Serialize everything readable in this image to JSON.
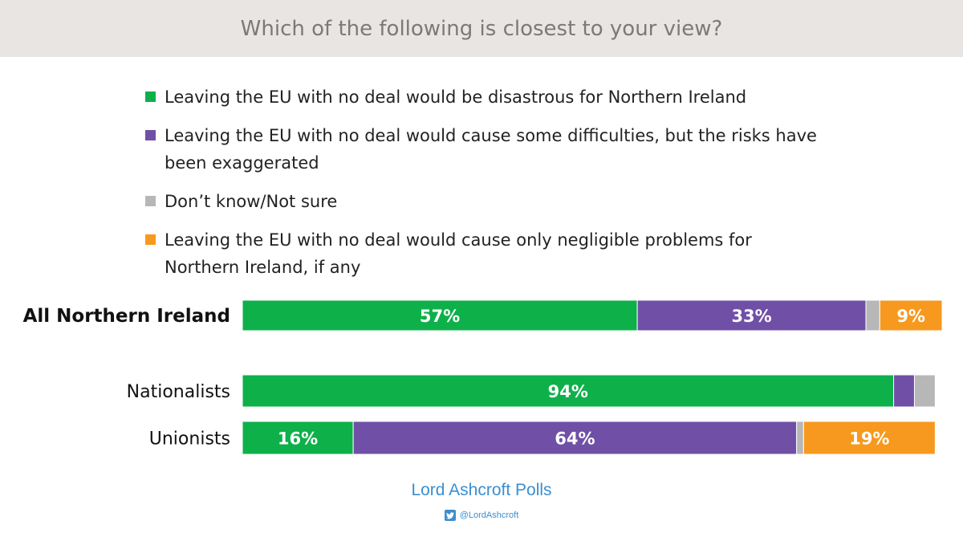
{
  "header": {
    "title": "Which of the following is closest to your view?"
  },
  "legend": [
    {
      "label": "Leaving the EU with no deal would be disastrous for Northern Ireland",
      "color": "#0eb04a"
    },
    {
      "label": "Leaving the EU with no deal would cause some difficulties, but the risks have been exaggerated",
      "color": "#7050a6"
    },
    {
      "label": "Don’t know/Not  sure",
      "color": "#b7b7b7"
    },
    {
      "label": "Leaving the EU with no deal would cause only negligible problems for Northern Ireland, if any",
      "color": "#f7991e"
    }
  ],
  "chart_data": {
    "type": "bar",
    "orientation": "horizontal",
    "stacked": true,
    "categories": [
      "All Northern Ireland",
      "Nationalists",
      "Unionists"
    ],
    "series": [
      {
        "name": "Leaving the EU with no deal would be disastrous for Northern Ireland",
        "values": [
          57,
          94,
          16
        ],
        "labels": [
          "57%",
          "94%",
          "16%"
        ],
        "color": "#0eb04a"
      },
      {
        "name": "Leaving the EU with no deal would cause some difficulties, but the risks have been exaggerated",
        "values": [
          33,
          3,
          64
        ],
        "labels": [
          "33%",
          "",
          "64%"
        ],
        "color": "#7050a6"
      },
      {
        "name": "Don’t know/Not  sure",
        "values": [
          2,
          3,
          1
        ],
        "labels": [
          "",
          "",
          ""
        ],
        "color": "#b7b7b7"
      },
      {
        "name": "Leaving the EU with no deal would cause only negligible problems for Northern Ireland, if any",
        "values": [
          9,
          0,
          19
        ],
        "labels": [
          "9%",
          "",
          "19%"
        ],
        "color": "#f7991e"
      }
    ],
    "xlim": [
      0,
      101
    ],
    "grid": false,
    "legend": "top"
  },
  "footer": {
    "brand": "Lord Ashcroft Polls",
    "handle": "@LordAshcroft"
  }
}
